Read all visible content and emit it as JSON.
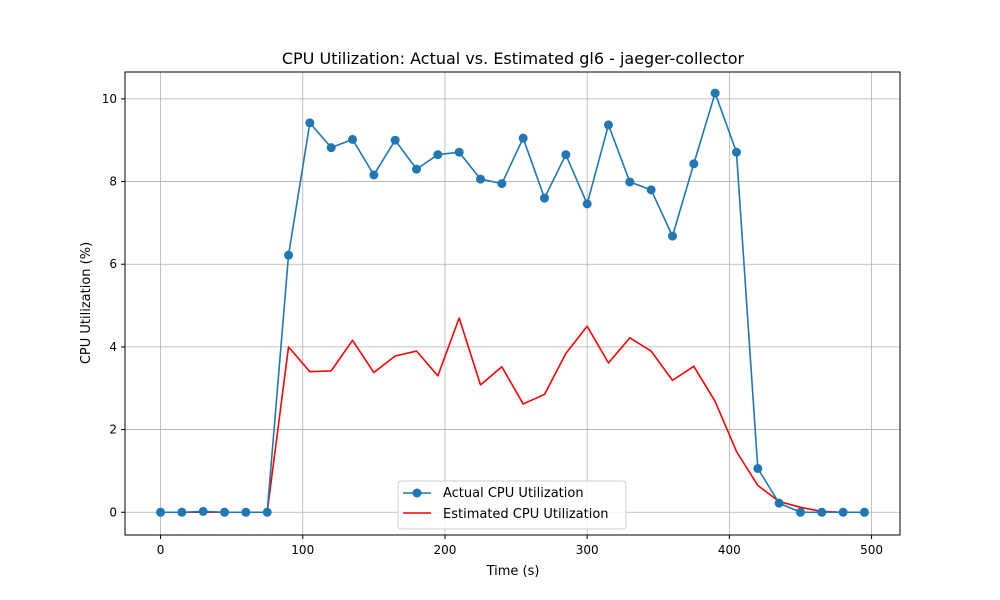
{
  "chart_data": {
    "type": "line",
    "title": "CPU Utilization: Actual vs. Estimated gl6 - jaeger-collector",
    "xlabel": "Time (s)",
    "ylabel": "CPU Utilization (%)",
    "xlim": [
      -25,
      520
    ],
    "ylim": [
      -0.55,
      10.65
    ],
    "xticks": [
      0,
      100,
      200,
      300,
      400,
      500
    ],
    "yticks": [
      0,
      2,
      4,
      6,
      8,
      10
    ],
    "xtick_labels": [
      "0",
      "100",
      "200",
      "300",
      "400",
      "500"
    ],
    "ytick_labels": [
      "0",
      "2",
      "4",
      "6",
      "8",
      "10"
    ],
    "grid": true,
    "legend_position": "bottom-center",
    "series": [
      {
        "name": "Actual CPU Utilization",
        "color": "#1f77b4",
        "marker": "circle",
        "x": [
          0,
          15,
          30,
          45,
          60,
          75,
          90,
          105,
          120,
          135,
          150,
          165,
          180,
          195,
          210,
          225,
          240,
          255,
          270,
          285,
          300,
          315,
          330,
          345,
          360,
          375,
          390,
          405,
          420,
          435,
          450,
          465,
          480,
          495
        ],
        "y": [
          0.0,
          0.0,
          0.02,
          0.0,
          0.0,
          0.0,
          6.22,
          9.42,
          8.82,
          9.02,
          8.16,
          9.0,
          8.3,
          8.65,
          8.71,
          8.06,
          7.95,
          9.05,
          7.6,
          8.65,
          7.46,
          9.37,
          7.99,
          7.8,
          6.68,
          8.43,
          10.14,
          8.71,
          1.06,
          0.22,
          0.0,
          0.0,
          0.0,
          0.0
        ]
      },
      {
        "name": "Estimated CPU Utilization",
        "color": "#ff0000",
        "marker": "none",
        "x": [
          0,
          15,
          30,
          45,
          60,
          75,
          90,
          105,
          120,
          135,
          150,
          165,
          180,
          195,
          210,
          225,
          240,
          255,
          270,
          285,
          300,
          315,
          330,
          345,
          360,
          375,
          390,
          405,
          420,
          435,
          450,
          465,
          480,
          495
        ],
        "y": [
          0.0,
          0.0,
          0.0,
          0.0,
          0.0,
          0.0,
          4.0,
          3.4,
          3.42,
          4.16,
          3.38,
          3.78,
          3.9,
          3.3,
          4.7,
          3.08,
          3.52,
          2.62,
          2.85,
          3.84,
          4.5,
          3.61,
          4.22,
          3.9,
          3.19,
          3.53,
          2.68,
          1.47,
          0.65,
          0.26,
          0.12,
          0.02,
          0.0,
          0.0
        ]
      }
    ]
  }
}
